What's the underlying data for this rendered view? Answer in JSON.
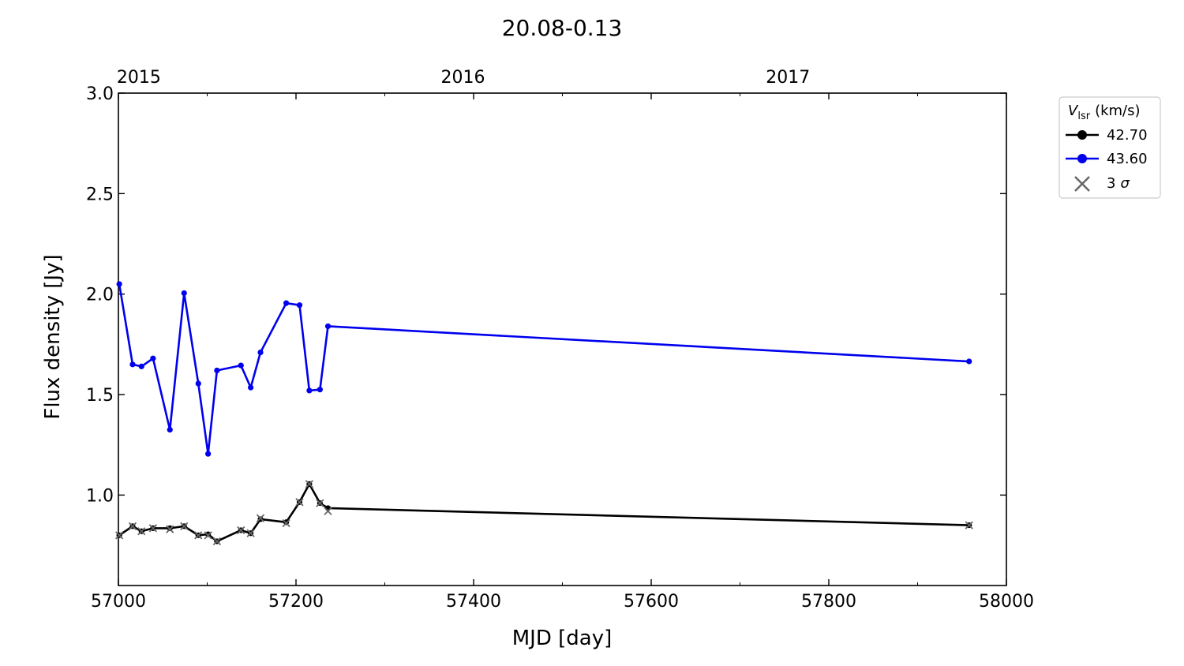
{
  "chart_data": {
    "type": "line",
    "title": "20.08-0.13",
    "xlabel": "MJD [day]",
    "ylabel": "Flux density [Jy]",
    "xlim": [
      57000,
      58000
    ],
    "ylim": [
      0.55,
      3.0
    ],
    "x_ticks": [
      57000,
      57200,
      57400,
      57600,
      57800,
      58000
    ],
    "x_tick_labels": [
      "57000",
      "57200",
      "57400",
      "57600",
      "57800",
      "58000"
    ],
    "y_ticks": [
      1.0,
      1.5,
      2.0,
      2.5,
      3.0
    ],
    "y_tick_labels": [
      "1.0",
      "1.5",
      "2.0",
      "2.5",
      "3.0"
    ],
    "top_axis": {
      "ticks": [
        57023,
        57388,
        57754
      ],
      "labels": [
        "2015",
        "2016",
        "2017"
      ]
    },
    "grid": false,
    "legend": {
      "title_main": "V",
      "title_sub": "lsr",
      "title_rest": "(km/s)",
      "position": "outside-right-top",
      "sigma_label_num": "3",
      "sigma_label_sym": "σ"
    },
    "series": [
      {
        "name": "42.70",
        "color": "#000000",
        "x": [
          57001,
          57016,
          57026,
          57039,
          57058,
          57074,
          57090,
          57101,
          57111,
          57138,
          57149,
          57160,
          57189,
          57204,
          57215,
          57227,
          57236,
          57958
        ],
        "y": [
          0.8,
          0.845,
          0.82,
          0.835,
          0.835,
          0.845,
          0.8,
          0.805,
          0.77,
          0.825,
          0.81,
          0.88,
          0.865,
          0.965,
          1.055,
          0.96,
          0.935,
          0.85
        ]
      },
      {
        "name": "43.60",
        "color": "#0000ee",
        "x": [
          57001,
          57016,
          57026,
          57039,
          57058,
          57074,
          57090,
          57101,
          57111,
          57138,
          57149,
          57160,
          57189,
          57204,
          57215,
          57227,
          57236,
          57958
        ],
        "y": [
          2.05,
          1.65,
          1.64,
          1.68,
          1.325,
          2.005,
          1.555,
          1.205,
          1.62,
          1.645,
          1.535,
          1.71,
          1.955,
          1.945,
          1.52,
          1.525,
          1.84,
          1.665
        ]
      }
    ],
    "three_sigma": {
      "color": "#666666",
      "x": [
        57001,
        57016,
        57026,
        57039,
        57058,
        57074,
        57090,
        57101,
        57111,
        57138,
        57149,
        57160,
        57189,
        57204,
        57215,
        57227,
        57236,
        57958
      ],
      "y": [
        0.8,
        0.845,
        0.82,
        0.835,
        0.83,
        0.845,
        0.8,
        0.8,
        0.77,
        0.825,
        0.81,
        0.885,
        0.86,
        0.965,
        1.055,
        0.96,
        0.92,
        0.85
      ]
    }
  }
}
